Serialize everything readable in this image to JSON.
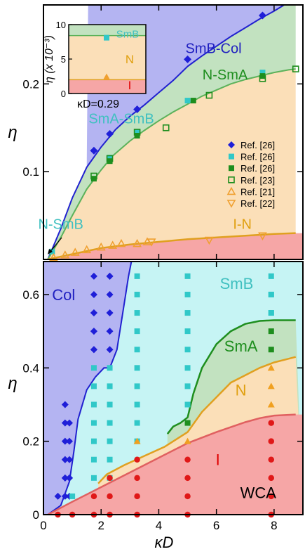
{
  "colors": {
    "col": "#b4b4f2",
    "smb": "#c6f4f4",
    "sma": "#c2e2c0",
    "nem": "#fbdfb8",
    "iso": "#f6a6a6",
    "colLine": "#2121d0",
    "smaLine": "#5cb25a",
    "smaLineDark": "#1e8e1e",
    "nLine": "#e0a020",
    "iLine": "#e06060",
    "smbText": "#40c0c0",
    "nText": "#e0a010",
    "iText": "#e00000",
    "colText": "#1f1fc0",
    "smaText": "#1e8e1e"
  },
  "chart_data": [
    {
      "id": "top",
      "type": "scatter",
      "xlim": [
        0,
        9
      ],
      "ylim": [
        0,
        0.29
      ],
      "ylabel": "η",
      "y_ticks": [
        0.1,
        0.2
      ],
      "y_tick_labels": [
        "0.1",
        "0.2"
      ],
      "x_ticks": [
        0,
        2,
        4,
        6,
        8
      ],
      "region_labels": [
        {
          "text": "SmB-Col",
          "x": 5.9,
          "y": 0.235,
          "color": "colText"
        },
        {
          "text": "N-SmA",
          "x": 6.3,
          "y": 0.205,
          "color": "smaText"
        },
        {
          "text": "SmA-SmB",
          "x": 2.7,
          "y": 0.155,
          "color": "smbText"
        },
        {
          "text": "N-SmB",
          "x": 0.6,
          "y": 0.035,
          "color": "smbText"
        },
        {
          "text": "I-N",
          "x": 6.9,
          "y": 0.035,
          "color": "nText"
        }
      ],
      "boundaries": {
        "smb_col": {
          "x": [
            0.15,
            0.6,
            1.0,
            1.5,
            2.0,
            2.5,
            3.0,
            3.5,
            4.0,
            4.5,
            5.0,
            5.5,
            6.0,
            6.5,
            7.0,
            7.5,
            8.0,
            8.5,
            8.75
          ],
          "y": [
            0.0,
            0.035,
            0.07,
            0.105,
            0.128,
            0.148,
            0.163,
            0.176,
            0.19,
            0.204,
            0.22,
            0.232,
            0.243,
            0.254,
            0.264,
            0.274,
            0.283,
            0.293,
            0.298
          ]
        },
        "n_sma": {
          "x": [
            0.15,
            0.6,
            1.0,
            1.5,
            2.0,
            2.4,
            3.0,
            3.5,
            4.0,
            4.5,
            5.0,
            5.5,
            6.0,
            6.5,
            7.0,
            7.5,
            8.0,
            8.5,
            8.75
          ],
          "y": [
            0.0,
            0.025,
            0.05,
            0.08,
            0.102,
            0.118,
            0.135,
            0.147,
            0.158,
            0.168,
            0.177,
            0.186,
            0.193,
            0.2,
            0.205,
            0.209,
            0.213,
            0.216,
            0.217
          ]
        },
        "i_n": {
          "x": [
            0.15,
            1.0,
            2.0,
            3.0,
            4.0,
            5.0,
            6.0,
            7.0,
            8.0,
            8.75
          ],
          "y": [
            0.0,
            0.006,
            0.013,
            0.017,
            0.02,
            0.023,
            0.025,
            0.027,
            0.029,
            0.03
          ]
        }
      },
      "series": [
        {
          "name": "Ref. [26]",
          "marker": "diamond",
          "color": "#1f1fd8",
          "filled": true,
          "x": [
            1.75,
            2.3,
            3.25,
            5.0,
            7.6
          ],
          "y": [
            0.124,
            0.143,
            0.171,
            0.228,
            0.278
          ]
        },
        {
          "name": "Ref. [26]",
          "marker": "square",
          "color": "#30c8c8",
          "filled": true,
          "x": [
            0.3,
            2.3,
            3.25,
            5.0,
            7.6
          ],
          "y": [
            0.009,
            0.116,
            0.145,
            0.181,
            0.213
          ]
        },
        {
          "name": "Ref. [26]",
          "marker": "square",
          "color": "#1e8e1e",
          "filled": true,
          "x": [
            1.75,
            2.3,
            3.25,
            5.2,
            7.6
          ],
          "y": [
            0.092,
            0.112,
            0.141,
            0.181,
            0.209
          ]
        },
        {
          "name": "Ref. [23]",
          "marker": "square",
          "color": "#1e8e1e",
          "filled": false,
          "x": [
            1.75,
            2.3,
            3.25,
            4.25,
            5.75,
            7.6,
            8.75
          ],
          "y": [
            0.095,
            0.115,
            0.145,
            0.15,
            0.187,
            0.206,
            0.217
          ]
        },
        {
          "name": "Ref. [21]",
          "marker": "triangle-up",
          "color": "#f0a030",
          "filled": false,
          "x": [
            0.35,
            0.75,
            1.1,
            1.5,
            2.0,
            2.4,
            2.7,
            3.25,
            3.6
          ],
          "y": [
            0.002,
            0.005,
            0.008,
            0.011,
            0.014,
            0.016,
            0.018,
            0.018,
            0.02
          ]
        },
        {
          "name": "Ref. [22]",
          "marker": "triangle-down",
          "color": "#f0a030",
          "filled": false,
          "x": [
            3.75,
            5.75,
            7.6
          ],
          "y": [
            0.02,
            0.022,
            0.027
          ]
        }
      ],
      "legend": {
        "placement": "right",
        "entries": [
          "Ref. [26]",
          "Ref. [26]",
          "Ref. [26]",
          "Ref. [23]",
          "Ref. [21]",
          "Ref. [22]"
        ]
      },
      "inset": {
        "ylabel": "η (x 10⁻³)",
        "y_ticks": [
          0,
          5,
          10
        ],
        "y_tick_labels": [
          "0",
          "5",
          "10"
        ],
        "ylim": [
          0,
          10
        ],
        "smb_n_boundary": 8.4,
        "n_i_boundary": 2.0,
        "points": [
          {
            "marker": "square",
            "color": "#30c8c8",
            "y": 8.1
          },
          {
            "marker": "triangle-up",
            "color": "#f0a030",
            "y": 2.4
          }
        ],
        "labels": [
          {
            "text": "SmB",
            "color": "smbText",
            "y": 8.7
          },
          {
            "text": "N",
            "color": "nText",
            "y": 5.0
          },
          {
            "text": "I",
            "color": "iText",
            "y": 1.2
          }
        ],
        "caption": "κD=0.29"
      }
    },
    {
      "id": "bottom",
      "type": "scatter",
      "xlim": [
        0,
        9
      ],
      "ylim": [
        0,
        0.69
      ],
      "xlabel": "κD",
      "ylabel": "η",
      "x_ticks": [
        0,
        2,
        4,
        6,
        8
      ],
      "x_tick_labels": [
        "0",
        "2",
        "4",
        "6",
        "8"
      ],
      "y_ticks": [
        0,
        0.2,
        0.4,
        0.6
      ],
      "y_tick_labels": [
        "0",
        "0.2",
        "0.4",
        "0.6"
      ],
      "region_labels": [
        {
          "text": "Col",
          "x": 0.7,
          "y": 0.585,
          "color": "colText"
        },
        {
          "text": "SmB",
          "x": 6.7,
          "y": 0.615,
          "color": "smbText"
        },
        {
          "text": "SmA",
          "x": 6.85,
          "y": 0.445,
          "color": "smaText"
        },
        {
          "text": "N",
          "x": 6.85,
          "y": 0.325,
          "color": "nText"
        },
        {
          "text": "I",
          "x": 6.05,
          "y": 0.135,
          "color": "iText"
        },
        {
          "text": "WCA",
          "x": 7.45,
          "y": 0.045,
          "color": "#000000"
        }
      ],
      "boundaries": {
        "col_smb": {
          "x": [
            0.15,
            0.6,
            0.9,
            1.05,
            1.2,
            1.5,
            1.8,
            2.1,
            2.3,
            2.55,
            2.75,
            2.95,
            3.05,
            3.15,
            3.3
          ],
          "y": [
            0.0,
            0.025,
            0.09,
            0.17,
            0.26,
            0.34,
            0.375,
            0.4,
            0.4,
            0.45,
            0.55,
            0.65,
            0.69,
            0.69,
            0.69
          ]
        },
        "n_sma": {
          "x": [
            4.3,
            4.5,
            4.75,
            5.0,
            5.2,
            5.5,
            6.0,
            6.5,
            7.0,
            7.5,
            8.0,
            8.5,
            8.75
          ],
          "y": [
            0.22,
            0.24,
            0.25,
            0.265,
            0.33,
            0.4,
            0.465,
            0.5,
            0.52,
            0.528,
            0.53,
            0.53,
            0.53
          ]
        },
        "i_n": {
          "x": [
            1.9,
            2.2,
            2.8,
            3.5,
            4.2,
            5.0,
            5.5,
            6.0,
            6.5,
            7.0,
            7.5,
            8.0,
            8.5,
            8.75
          ],
          "y": [
            0.085,
            0.11,
            0.135,
            0.16,
            0.185,
            0.225,
            0.28,
            0.32,
            0.36,
            0.38,
            0.4,
            0.415,
            0.425,
            0.43
          ]
        },
        "iso": {
          "x": [
            0.15,
            1.0,
            2.0,
            3.0,
            4.0,
            5.0,
            6.0,
            7.0,
            7.5,
            8.0,
            8.5,
            8.75
          ],
          "y": [
            0.0,
            0.035,
            0.075,
            0.115,
            0.155,
            0.195,
            0.225,
            0.252,
            0.263,
            0.27,
            0.272,
            0.273
          ]
        }
      },
      "series": [
        {
          "name": "Col",
          "marker": "diamond",
          "color": "#1f1fd8",
          "filled": true,
          "x": [
            0.5,
            0.75,
            0.75,
            0.75,
            0.75,
            0.75,
            0.75,
            0.75,
            0.75,
            0.9,
            0.9,
            0.9,
            0.9,
            0.9,
            0.9,
            1.75,
            1.75,
            1.75,
            1.75,
            1.75,
            1.75,
            1.75,
            1.75,
            2.3,
            2.3,
            2.3,
            2.3,
            2.3,
            2.3
          ],
          "y": [
            0.05,
            0.05,
            0.1,
            0.15,
            0.2,
            0.25,
            0.3,
            0.15,
            0.1,
            0.1,
            0.15,
            0.2,
            0.25,
            0.05,
            0.1,
            0.45,
            0.5,
            0.55,
            0.6,
            0.65,
            0.55,
            0.5,
            0.45,
            0.45,
            0.5,
            0.55,
            0.6,
            0.65,
            0.65
          ]
        },
        {
          "name": "SmB",
          "marker": "square",
          "color": "#30c8c8",
          "filled": true,
          "x": [
            1.0,
            1.75,
            1.75,
            1.75,
            1.75,
            1.75,
            1.75,
            1.75,
            2.3,
            2.3,
            2.3,
            2.3,
            2.3,
            2.3,
            2.3,
            3.25,
            3.25,
            3.25,
            3.25,
            3.25,
            3.25,
            3.25,
            3.25,
            3.25,
            3.25,
            5.0,
            5.0,
            5.0,
            5.0,
            5.0,
            5.0,
            5.0,
            5.0,
            5.0,
            7.9,
            7.9,
            7.9,
            7.9,
            7.9
          ],
          "y": [
            0.05,
            0.1,
            0.15,
            0.2,
            0.25,
            0.3,
            0.35,
            0.4,
            0.15,
            0.2,
            0.25,
            0.3,
            0.35,
            0.4,
            0.1,
            0.25,
            0.3,
            0.35,
            0.4,
            0.45,
            0.5,
            0.55,
            0.6,
            0.65,
            0.2,
            0.3,
            0.35,
            0.4,
            0.45,
            0.5,
            0.55,
            0.6,
            0.65,
            0.25,
            0.55,
            0.6,
            0.65,
            0.55,
            0.6
          ]
        },
        {
          "name": "SmA",
          "marker": "square",
          "color": "#1e8e1e",
          "filled": true,
          "x": [
            5.0,
            7.9,
            7.9
          ],
          "y": [
            0.25,
            0.45,
            0.5
          ]
        },
        {
          "name": "N",
          "marker": "triangle-up",
          "color": "#f0a020",
          "filled": true,
          "x": [
            3.25,
            5.0,
            7.9,
            7.9,
            7.9
          ],
          "y": [
            0.2,
            0.2,
            0.3,
            0.35,
            0.4
          ]
        },
        {
          "name": "I",
          "marker": "circle",
          "color": "#e01818",
          "filled": true,
          "x": [
            0.5,
            1.0,
            1.75,
            1.75,
            2.3,
            2.3,
            2.3,
            3.25,
            3.25,
            3.25,
            3.25,
            5.0,
            5.0,
            5.0,
            5.0,
            7.9,
            7.9,
            7.9,
            7.9,
            7.9,
            7.9
          ],
          "y": [
            0.0,
            0.0,
            0.0,
            0.05,
            0.0,
            0.05,
            0.1,
            0.0,
            0.05,
            0.1,
            0.15,
            0.0,
            0.05,
            0.1,
            0.15,
            0.0,
            0.05,
            0.1,
            0.15,
            0.2,
            0.25
          ]
        }
      ]
    }
  ]
}
